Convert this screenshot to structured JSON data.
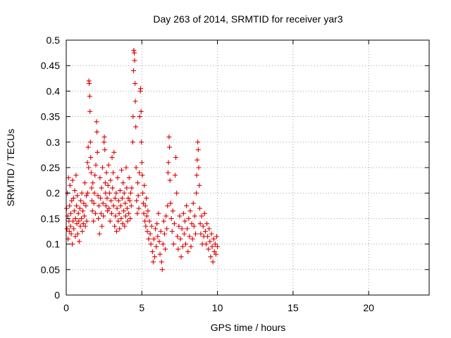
{
  "chart_data": {
    "type": "scatter",
    "title": "Day 263 of 2014, SRMTID for receiver yar3",
    "xlabel": "GPS time / hours",
    "ylabel": "SRMTID / TECUs",
    "xlim": [
      0,
      24
    ],
    "ylim": [
      0,
      0.5
    ],
    "x_ticks": [
      0,
      5,
      10,
      15,
      20
    ],
    "x_tick_labels": [
      "0",
      "5",
      "10",
      "15",
      "20"
    ],
    "y_ticks": [
      0,
      0.05,
      0.1,
      0.15,
      0.2,
      0.25,
      0.3,
      0.35,
      0.4,
      0.45,
      0.5
    ],
    "y_tick_labels": [
      "0",
      "0.05",
      "0.1",
      "0.15",
      "0.2",
      "0.25",
      "0.3",
      "0.35",
      "0.4",
      "0.45",
      "0.5"
    ],
    "grid": true,
    "marker": "plus",
    "series_color": "#dd0000",
    "series": [
      {
        "name": "SRMTID",
        "points": [
          [
            0.02,
            0.17
          ],
          [
            0.05,
            0.13
          ],
          [
            0.08,
            0.2
          ],
          [
            0.1,
            0.155
          ],
          [
            0.12,
            0.11
          ],
          [
            0.15,
            0.23
          ],
          [
            0.18,
            0.145
          ],
          [
            0.2,
            0.125
          ],
          [
            0.22,
            0.175
          ],
          [
            0.25,
            0.215
          ],
          [
            0.28,
            0.135
          ],
          [
            0.3,
            0.16
          ],
          [
            0.33,
            0.12
          ],
          [
            0.36,
            0.185
          ],
          [
            0.4,
            0.1
          ],
          [
            0.42,
            0.225
          ],
          [
            0.45,
            0.145
          ],
          [
            0.48,
            0.19
          ],
          [
            0.5,
            0.13
          ],
          [
            0.53,
            0.165
          ],
          [
            0.56,
            0.205
          ],
          [
            0.6,
            0.115
          ],
          [
            0.62,
            0.15
          ],
          [
            0.65,
            0.235
          ],
          [
            0.68,
            0.175
          ],
          [
            0.7,
            0.14
          ],
          [
            0.73,
            0.195
          ],
          [
            0.76,
            0.12
          ],
          [
            0.8,
            0.16
          ],
          [
            0.83,
            0.145
          ],
          [
            0.86,
            0.105
          ],
          [
            0.9,
            0.17
          ],
          [
            0.93,
            0.135
          ],
          [
            0.96,
            0.185
          ],
          [
            1.0,
            0.15
          ],
          [
            1.03,
            0.2
          ],
          [
            1.06,
            0.125
          ],
          [
            1.1,
            0.165
          ],
          [
            1.13,
            0.14
          ],
          [
            1.16,
            0.18
          ],
          [
            1.2,
            0.155
          ],
          [
            1.23,
            0.22
          ],
          [
            1.26,
            0.135
          ],
          [
            1.3,
            0.175
          ],
          [
            1.33,
            0.195
          ],
          [
            1.36,
            0.145
          ],
          [
            1.4,
            0.26
          ],
          [
            1.42,
            0.2
          ],
          [
            1.45,
            0.29
          ],
          [
            1.48,
            0.25
          ],
          [
            1.5,
            0.42
          ],
          [
            1.52,
            0.415
          ],
          [
            1.55,
            0.39
          ],
          [
            1.57,
            0.36
          ],
          [
            1.6,
            0.3
          ],
          [
            1.62,
            0.27
          ],
          [
            1.65,
            0.24
          ],
          [
            1.68,
            0.21
          ],
          [
            1.7,
            0.185
          ],
          [
            1.73,
            0.165
          ],
          [
            1.76,
            0.22
          ],
          [
            1.8,
            0.145
          ],
          [
            1.83,
            0.18
          ],
          [
            1.86,
            0.2
          ],
          [
            1.9,
            0.235
          ],
          [
            1.93,
            0.16
          ],
          [
            1.96,
            0.255
          ],
          [
            2.0,
            0.34
          ],
          [
            2.03,
            0.32
          ],
          [
            2.06,
            0.28
          ],
          [
            2.1,
            0.195
          ],
          [
            2.13,
            0.15
          ],
          [
            2.16,
            0.175
          ],
          [
            2.2,
            0.12
          ],
          [
            2.23,
            0.23
          ],
          [
            2.26,
            0.19
          ],
          [
            2.3,
            0.16
          ],
          [
            2.33,
            0.21
          ],
          [
            2.36,
            0.135
          ],
          [
            2.4,
            0.25
          ],
          [
            2.43,
            0.18
          ],
          [
            2.46,
            0.155
          ],
          [
            2.5,
            0.3
          ],
          [
            2.52,
            0.31
          ],
          [
            2.55,
            0.285
          ],
          [
            2.58,
            0.22
          ],
          [
            2.6,
            0.2
          ],
          [
            2.63,
            0.175
          ],
          [
            2.66,
            0.24
          ],
          [
            2.7,
            0.19
          ],
          [
            2.73,
            0.165
          ],
          [
            2.76,
            0.215
          ],
          [
            2.8,
            0.255
          ],
          [
            2.83,
            0.17
          ],
          [
            2.86,
            0.2
          ],
          [
            2.9,
            0.145
          ],
          [
            2.93,
            0.225
          ],
          [
            2.96,
            0.185
          ],
          [
            3.0,
            0.16
          ],
          [
            3.03,
            0.27
          ],
          [
            3.06,
            0.21
          ],
          [
            3.1,
            0.24
          ],
          [
            3.13,
            0.175
          ],
          [
            3.16,
            0.28
          ],
          [
            3.2,
            0.135
          ],
          [
            3.23,
            0.19
          ],
          [
            3.26,
            0.155
          ],
          [
            3.3,
            0.2
          ],
          [
            3.33,
            0.125
          ],
          [
            3.36,
            0.17
          ],
          [
            3.4,
            0.23
          ],
          [
            3.43,
            0.145
          ],
          [
            3.46,
            0.185
          ],
          [
            3.5,
            0.16
          ],
          [
            3.53,
            0.13
          ],
          [
            3.56,
            0.205
          ],
          [
            3.6,
            0.175
          ],
          [
            3.63,
            0.15
          ],
          [
            3.66,
            0.245
          ],
          [
            3.7,
            0.19
          ],
          [
            3.73,
            0.14
          ],
          [
            3.76,
            0.22
          ],
          [
            3.8,
            0.165
          ],
          [
            3.83,
            0.2
          ],
          [
            3.86,
            0.135
          ],
          [
            3.9,
            0.18
          ],
          [
            3.93,
            0.155
          ],
          [
            3.96,
            0.25
          ],
          [
            4.0,
            0.21
          ],
          [
            4.03,
            0.17
          ],
          [
            4.06,
            0.145
          ],
          [
            4.1,
            0.19
          ],
          [
            4.13,
            0.16
          ],
          [
            4.16,
            0.23
          ],
          [
            4.2,
            0.185
          ],
          [
            4.23,
            0.15
          ],
          [
            4.26,
            0.2
          ],
          [
            4.3,
            0.175
          ],
          [
            4.33,
            0.21
          ],
          [
            4.4,
            0.3
          ],
          [
            4.42,
            0.35
          ],
          [
            4.45,
            0.44
          ],
          [
            4.47,
            0.48
          ],
          [
            4.5,
            0.475
          ],
          [
            4.52,
            0.46
          ],
          [
            4.55,
            0.415
          ],
          [
            4.57,
            0.38
          ],
          [
            4.6,
            0.33
          ],
          [
            4.62,
            0.25
          ],
          [
            4.65,
            0.185
          ],
          [
            4.7,
            0.16
          ],
          [
            4.73,
            0.22
          ],
          [
            4.76,
            0.195
          ],
          [
            4.8,
            0.17
          ],
          [
            4.83,
            0.24
          ],
          [
            4.86,
            0.35
          ],
          [
            4.9,
            0.4
          ],
          [
            4.92,
            0.405
          ],
          [
            4.95,
            0.36
          ],
          [
            4.97,
            0.3
          ],
          [
            5.0,
            0.26
          ],
          [
            5.03,
            0.235
          ],
          [
            5.06,
            0.2
          ],
          [
            5.1,
            0.18
          ],
          [
            5.13,
            0.16
          ],
          [
            5.16,
            0.215
          ],
          [
            5.2,
            0.145
          ],
          [
            5.23,
            0.175
          ],
          [
            5.26,
            0.135
          ],
          [
            5.3,
            0.19
          ],
          [
            5.33,
            0.155
          ],
          [
            5.36,
            0.125
          ],
          [
            5.4,
            0.165
          ],
          [
            5.45,
            0.11
          ],
          [
            5.5,
            0.145
          ],
          [
            5.55,
            0.12
          ],
          [
            5.6,
            0.1
          ],
          [
            5.65,
            0.135
          ],
          [
            5.7,
            0.085
          ],
          [
            5.75,
            0.065
          ],
          [
            5.8,
            0.11
          ],
          [
            5.85,
            0.075
          ],
          [
            5.9,
            0.13
          ],
          [
            5.95,
            0.095
          ],
          [
            6.0,
            0.14
          ],
          [
            6.05,
            0.115
          ],
          [
            6.1,
            0.16
          ],
          [
            6.15,
            0.105
          ],
          [
            6.2,
            0.08
          ],
          [
            6.25,
            0.125
          ],
          [
            6.3,
            0.065
          ],
          [
            6.35,
            0.05
          ],
          [
            6.4,
            0.1
          ],
          [
            6.45,
            0.145
          ],
          [
            6.5,
            0.12
          ],
          [
            6.55,
            0.09
          ],
          [
            6.6,
            0.155
          ],
          [
            6.65,
            0.13
          ],
          [
            6.7,
            0.175
          ],
          [
            6.73,
            0.24
          ],
          [
            6.76,
            0.26
          ],
          [
            6.8,
            0.31
          ],
          [
            6.83,
            0.29
          ],
          [
            6.86,
            0.225
          ],
          [
            6.9,
            0.18
          ],
          [
            6.95,
            0.15
          ],
          [
            7.0,
            0.125
          ],
          [
            7.05,
            0.165
          ],
          [
            7.1,
            0.1
          ],
          [
            7.15,
            0.14
          ],
          [
            7.2,
            0.235
          ],
          [
            7.25,
            0.27
          ],
          [
            7.3,
            0.2
          ],
          [
            7.35,
            0.115
          ],
          [
            7.4,
            0.09
          ],
          [
            7.45,
            0.135
          ],
          [
            7.5,
            0.155
          ],
          [
            7.55,
            0.11
          ],
          [
            7.6,
            0.075
          ],
          [
            7.65,
            0.13
          ],
          [
            7.7,
            0.095
          ],
          [
            7.75,
            0.16
          ],
          [
            7.8,
            0.12
          ],
          [
            7.85,
            0.145
          ],
          [
            7.9,
            0.1
          ],
          [
            7.95,
            0.175
          ],
          [
            8.0,
            0.13
          ],
          [
            8.05,
            0.085
          ],
          [
            8.1,
            0.15
          ],
          [
            8.15,
            0.115
          ],
          [
            8.2,
            0.165
          ],
          [
            8.25,
            0.095
          ],
          [
            8.3,
            0.14
          ],
          [
            8.35,
            0.11
          ],
          [
            8.4,
            0.18
          ],
          [
            8.45,
            0.135
          ],
          [
            8.5,
            0.155
          ],
          [
            8.55,
            0.12
          ],
          [
            8.6,
            0.2
          ],
          [
            8.63,
            0.235
          ],
          [
            8.66,
            0.265
          ],
          [
            8.7,
            0.3
          ],
          [
            8.73,
            0.285
          ],
          [
            8.76,
            0.25
          ],
          [
            8.8,
            0.215
          ],
          [
            8.83,
            0.17
          ],
          [
            8.86,
            0.14
          ],
          [
            8.9,
            0.12
          ],
          [
            8.95,
            0.155
          ],
          [
            9.0,
            0.1
          ],
          [
            9.05,
            0.135
          ],
          [
            9.1,
            0.115
          ],
          [
            9.15,
            0.16
          ],
          [
            9.2,
            0.125
          ],
          [
            9.25,
            0.1
          ],
          [
            9.3,
            0.14
          ],
          [
            9.35,
            0.115
          ],
          [
            9.4,
            0.09
          ],
          [
            9.45,
            0.13
          ],
          [
            9.5,
            0.105
          ],
          [
            9.55,
            0.075
          ],
          [
            9.6,
            0.12
          ],
          [
            9.65,
            0.095
          ],
          [
            9.7,
            0.065
          ],
          [
            9.75,
            0.11
          ],
          [
            9.8,
            0.085
          ],
          [
            9.85,
            0.1
          ],
          [
            9.9,
            0.08
          ],
          [
            9.95,
            0.115
          ],
          [
            10.0,
            0.095
          ]
        ]
      }
    ]
  }
}
